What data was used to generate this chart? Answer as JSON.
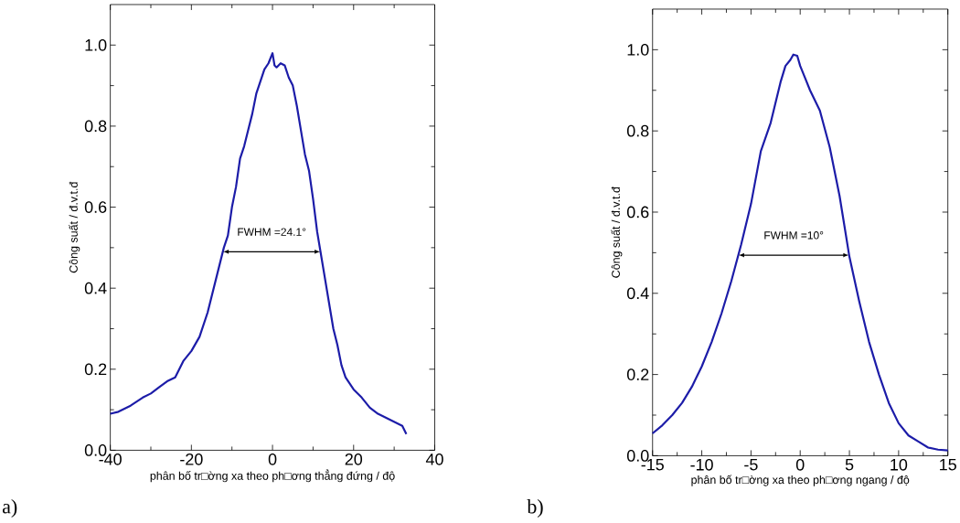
{
  "chart_data": [
    {
      "type": "line",
      "xlabel": "phân bố tr□ờng xa theo ph□ơng thẳng đứng  / độ",
      "ylabel": "Công suất / đ.v.t.đ",
      "annotations": [
        "FWHM =24.1°",
        "a)"
      ],
      "xlim": [
        -40,
        40
      ],
      "ylim": [
        0,
        1.1
      ],
      "xticks": [
        -40,
        -20,
        0,
        20,
        40
      ],
      "yticks": [
        {
          "value": 0,
          "label": "0.0"
        },
        {
          "value": 0.2,
          "label": "0.2"
        },
        {
          "value": 0.4,
          "label": "0.4"
        },
        {
          "value": 0.6,
          "label": "0.6"
        },
        {
          "value": 0.8,
          "label": "0.8"
        },
        {
          "value": 1.0,
          "label": "1.0"
        }
      ],
      "x": [
        -40,
        -38,
        -35,
        -32,
        -30,
        -28,
        -26,
        -24,
        -22,
        -20,
        -18,
        -16,
        -14,
        -12,
        -11,
        -10,
        -9,
        -8,
        -7,
        -6,
        -5,
        -4,
        -3,
        -2,
        -1,
        0,
        0.5,
        1,
        2,
        3,
        4,
        5,
        6,
        7,
        8,
        9,
        10,
        11,
        12,
        13,
        14,
        15,
        16,
        17,
        18,
        20,
        22,
        24,
        26,
        28,
        30,
        31,
        32,
        33
      ],
      "series": [
        {
          "color": "#1c1ca8",
          "values": [
            0.09,
            0.095,
            0.11,
            0.13,
            0.14,
            0.155,
            0.17,
            0.18,
            0.22,
            0.245,
            0.28,
            0.34,
            0.42,
            0.5,
            0.53,
            0.6,
            0.65,
            0.72,
            0.75,
            0.79,
            0.83,
            0.88,
            0.91,
            0.94,
            0.955,
            0.98,
            0.95,
            0.945,
            0.955,
            0.95,
            0.92,
            0.9,
            0.85,
            0.79,
            0.73,
            0.69,
            0.62,
            0.54,
            0.48,
            0.42,
            0.36,
            0.3,
            0.26,
            0.21,
            0.18,
            0.15,
            0.13,
            0.105,
            0.09,
            0.08,
            0.07,
            0.065,
            0.06,
            0.04
          ]
        }
      ],
      "marker": "none",
      "line_style": "solid"
    },
    {
      "type": "line",
      "xlabel": "phân bố tr□ờng xa theo ph□ơng ngang / độ",
      "ylabel": "Công suất / đ.v.t.đ",
      "annotations": [
        "FWHM =10°",
        "b)"
      ],
      "xlim": [
        -15,
        15
      ],
      "ylim": [
        0,
        1.1
      ],
      "xticks": [
        -15,
        -10,
        -5,
        0,
        5,
        10,
        15
      ],
      "yticks": [
        {
          "value": 0,
          "label": "0.0"
        },
        {
          "value": 0.2,
          "label": "0.2"
        },
        {
          "value": 0.4,
          "label": "0.4"
        },
        {
          "value": 0.6,
          "label": "0.6"
        },
        {
          "value": 0.8,
          "label": "0.8"
        },
        {
          "value": 1.0,
          "label": "1.0"
        }
      ],
      "x": [
        -15,
        -14,
        -13,
        -12,
        -11,
        -10,
        -9,
        -8,
        -7,
        -6,
        -5,
        -4,
        -3,
        -2,
        -1.5,
        -1,
        -0.7,
        -0.3,
        0,
        0.5,
        1,
        2,
        3,
        4,
        5,
        6,
        7,
        8,
        9,
        10,
        11,
        12,
        13,
        14,
        15
      ],
      "series": [
        {
          "color": "#1c1ca8",
          "values": [
            0.055,
            0.075,
            0.1,
            0.13,
            0.17,
            0.22,
            0.28,
            0.35,
            0.43,
            0.52,
            0.62,
            0.75,
            0.82,
            0.92,
            0.96,
            0.975,
            0.988,
            0.985,
            0.96,
            0.93,
            0.9,
            0.85,
            0.76,
            0.64,
            0.49,
            0.38,
            0.28,
            0.2,
            0.13,
            0.08,
            0.05,
            0.035,
            0.02,
            0.015,
            0.013
          ]
        }
      ],
      "marker": "none",
      "line_style": "solid"
    }
  ]
}
